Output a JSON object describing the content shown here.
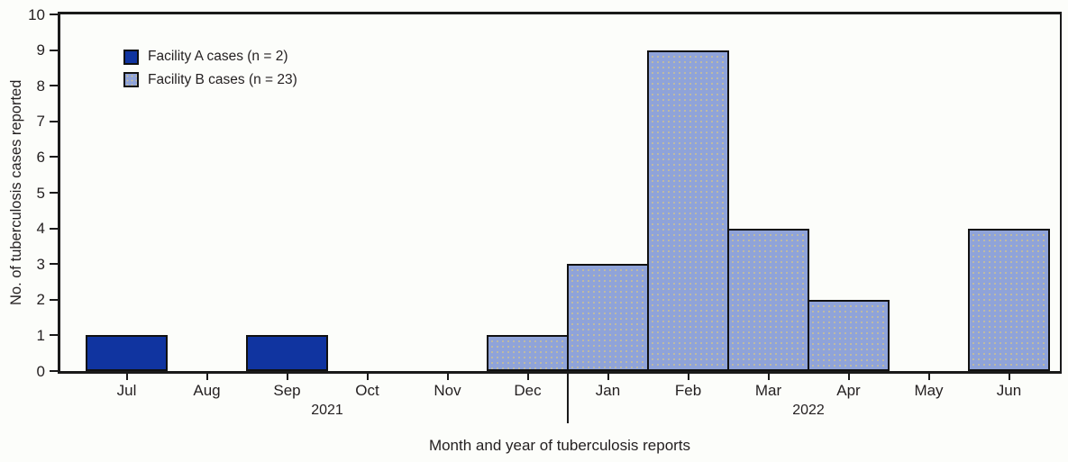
{
  "figure": {
    "ylabel": "No. of tuberculosis cases reported",
    "xlabel": "Month and year of tuberculosis reports"
  },
  "legend": [
    {
      "label": "Facility A cases (n = 2)",
      "series": "facility-a"
    },
    {
      "label": "Facility B cases (n = 23)",
      "series": "facility-b"
    }
  ],
  "colors": {
    "facility_a_fill": "#1034a0",
    "facility_b_fill": "#8fa3d9",
    "facility_b_dot": "#c9c096",
    "axis": "#1a1a1a",
    "text": "#231f20"
  },
  "chart_data": {
    "type": "bar",
    "title": "",
    "xlabel": "Month and year of tuberculosis reports",
    "ylabel": "No. of tuberculosis cases reported",
    "ylim": [
      0,
      10
    ],
    "yticks": [
      0,
      1,
      2,
      3,
      4,
      5,
      6,
      7,
      8,
      9,
      10
    ],
    "grid": false,
    "legend_position": "upper-left",
    "categories": [
      "Jul",
      "Aug",
      "Sep",
      "Oct",
      "Nov",
      "Dec",
      "Jan",
      "Feb",
      "Mar",
      "Apr",
      "May",
      "Jun"
    ],
    "series": [
      {
        "name": "Facility A cases (n = 2)",
        "color": "#1034a0",
        "pattern": "solid",
        "values": [
          1,
          0,
          1,
          0,
          0,
          0,
          0,
          0,
          0,
          0,
          0,
          0
        ]
      },
      {
        "name": "Facility B cases (n = 23)",
        "color": "#8fa3d9",
        "pattern": "dots",
        "values": [
          0,
          0,
          0,
          0,
          0,
          1,
          3,
          9,
          4,
          2,
          0,
          4
        ]
      }
    ],
    "year_annotations": [
      {
        "label": "2021",
        "boundary_bin": 3
      },
      {
        "label": "2022",
        "boundary_bin": 9
      }
    ],
    "year_divider_boundary_bin": 6
  }
}
